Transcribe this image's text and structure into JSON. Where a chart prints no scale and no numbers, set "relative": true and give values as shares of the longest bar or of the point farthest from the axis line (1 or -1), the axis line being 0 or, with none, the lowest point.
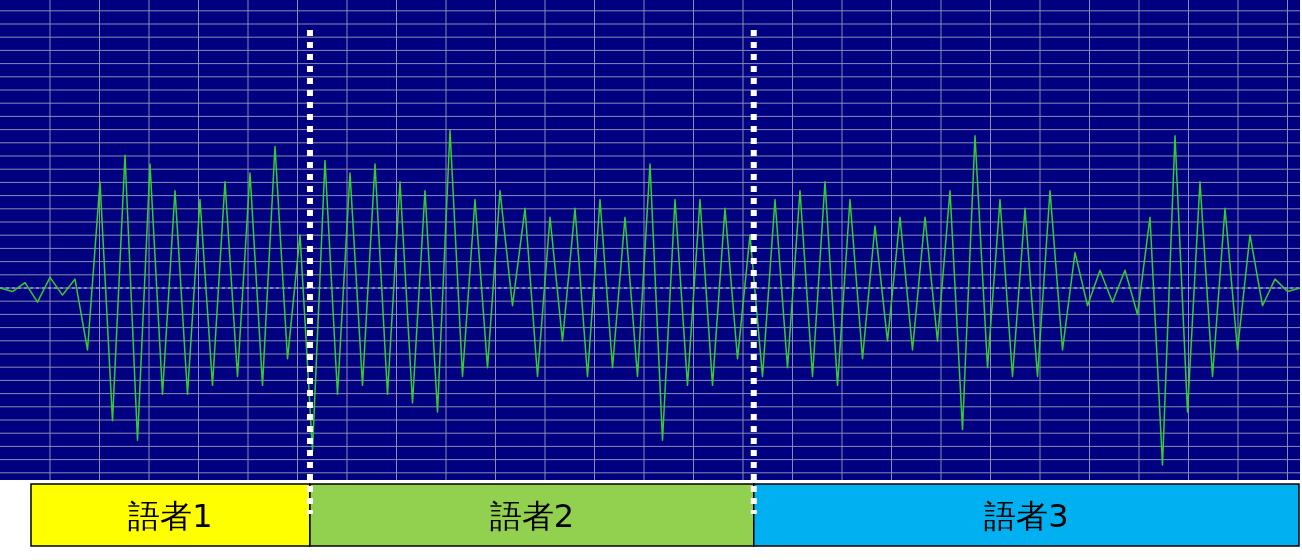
{
  "chart_data": [
    {
      "type": "line",
      "relative": true,
      "grid": true,
      "marker": "none",
      "line_style": "solid",
      "categories": [
        null,
        null,
        null,
        null,
        null,
        null,
        null,
        null,
        null,
        null,
        null,
        null,
        null,
        null,
        null,
        null,
        null,
        null,
        null,
        null,
        null,
        null,
        null,
        null,
        null,
        null,
        null,
        null,
        null,
        null,
        null,
        null,
        null,
        null,
        null,
        null,
        null,
        null,
        null,
        null,
        null,
        null,
        null,
        null,
        null,
        null,
        null,
        null,
        null,
        null,
        null,
        null,
        null,
        null,
        null,
        null,
        null,
        null,
        null,
        null,
        null,
        null,
        null,
        null,
        null,
        null,
        null,
        null,
        null,
        null,
        null,
        null,
        null,
        null,
        null,
        null,
        null,
        null,
        null,
        null,
        null,
        null,
        null,
        null,
        null,
        null,
        null,
        null,
        null,
        null,
        null,
        null,
        null,
        null,
        null,
        null,
        null,
        null,
        null,
        null,
        null,
        null,
        null,
        null,
        null
      ],
      "series": [
        {
          "color": "#33cc33",
          "values": [
            0,
            -0.02,
            0.03,
            -0.08,
            0.06,
            -0.04,
            0.05,
            -0.35,
            0.6,
            -0.75,
            0.75,
            -0.86,
            0.7,
            -0.6,
            0.55,
            -0.6,
            0.5,
            -0.55,
            0.6,
            -0.5,
            0.65,
            -0.55,
            0.8,
            -0.4,
            0.3,
            -0.92,
            0.72,
            -0.6,
            0.65,
            -0.55,
            0.7,
            -0.6,
            0.6,
            -0.65,
            0.55,
            -0.7,
            0.89,
            -0.5,
            0.5,
            -0.45,
            0.55,
            -0.1,
            0.45,
            -0.5,
            0.4,
            -0.3,
            0.45,
            -0.5,
            0.5,
            -0.45,
            0.4,
            -0.5,
            0.7,
            -0.86,
            0.5,
            -0.55,
            0.5,
            -0.55,
            0.45,
            -0.4,
            0.3,
            -0.5,
            0.5,
            -0.45,
            0.55,
            -0.5,
            0.6,
            -0.55,
            0.5,
            -0.4,
            0.35,
            -0.3,
            0.4,
            -0.35,
            0.4,
            -0.3,
            0.55,
            -0.8,
            0.86,
            -0.45,
            0.5,
            -0.5,
            0.45,
            -0.5,
            0.55,
            -0.35,
            0.2,
            -0.1,
            0.1,
            -0.08,
            0.1,
            -0.15,
            0.4,
            -1,
            0.86,
            -0.7,
            0.6,
            -0.5,
            0.45,
            -0.35,
            0.3,
            -0.1,
            0.05,
            -0.02,
            0
          ]
        }
      ],
      "ref_lines": [
        {
          "axis": "y",
          "value": 0,
          "color": "#c0c0e0",
          "line_style": "dashed"
        }
      ]
    },
    {
      "type": "bar",
      "orientation": "horizontal",
      "stacked": true,
      "relative": true,
      "categories": [
        null
      ],
      "series": [
        {
          "name": "語者1",
          "color": "#ffff00",
          "values": [
            0.22
          ]
        },
        {
          "name": "語者2",
          "color": "#92d050",
          "values": [
            0.35
          ]
        },
        {
          "name": "語者3",
          "color": "#00b0f0",
          "values": [
            0.43
          ]
        }
      ],
      "ref_lines": [
        {
          "axis": "x",
          "value": 0.22,
          "color": "#ffffff",
          "line_style": "dotted"
        },
        {
          "axis": "x",
          "value": 0.57,
          "color": "#ffffff",
          "line_style": "dotted"
        }
      ]
    }
  ]
}
